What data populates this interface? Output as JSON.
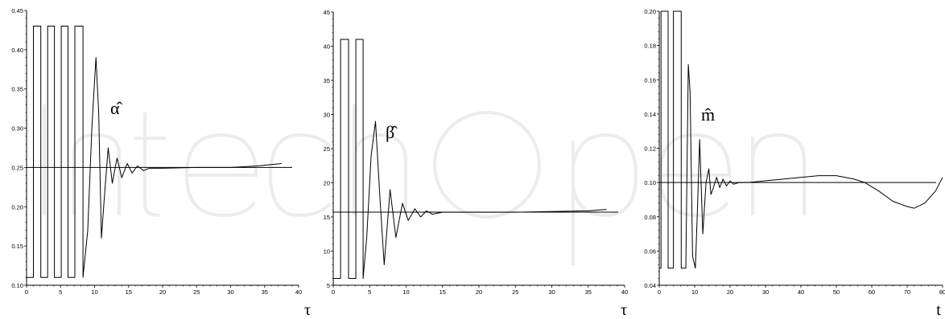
{
  "chart_data": [
    {
      "type": "line",
      "panel": "alpha",
      "xlabel": "τ",
      "annotation": "α̂",
      "xlim": [
        0,
        40
      ],
      "ylim": [
        0.1,
        0.45
      ],
      "xticks": [
        "0",
        "5",
        "10",
        "15",
        "20",
        "25",
        "30",
        "35",
        "40"
      ],
      "yticks": [
        "0.10",
        "0.15",
        "0.20",
        "0.25",
        "0.30",
        "0.35",
        "0.40",
        "0.45"
      ],
      "reference_value": 0.25,
      "series": [
        {
          "x": [
            0,
            1.0,
            1.0,
            2.1,
            2.1,
            3.1,
            3.1,
            4.1,
            4.1,
            5.1,
            5.1,
            6.1,
            6.1,
            7.1,
            7.1,
            8.3,
            8.3,
            9.0,
            9.6,
            10.2,
            10.6,
            11.0,
            11.5,
            12.0,
            12.6,
            13.3,
            14.0,
            14.8,
            15.5,
            16.3,
            17.2,
            18.0,
            20,
            25,
            30,
            34,
            37.5
          ],
          "y": [
            0.11,
            0.11,
            0.43,
            0.43,
            0.11,
            0.11,
            0.43,
            0.43,
            0.11,
            0.11,
            0.43,
            0.43,
            0.11,
            0.11,
            0.43,
            0.43,
            0.11,
            0.17,
            0.3,
            0.39,
            0.32,
            0.16,
            0.22,
            0.275,
            0.23,
            0.262,
            0.237,
            0.255,
            0.243,
            0.252,
            0.246,
            0.249,
            0.249,
            0.25,
            0.25,
            0.252,
            0.255
          ]
        }
      ]
    },
    {
      "type": "line",
      "panel": "beta",
      "xlabel": "τ",
      "annotation": "β̂",
      "xlim": [
        0,
        40
      ],
      "ylim": [
        5,
        45
      ],
      "xticks": [
        "0",
        "5",
        "10",
        "15",
        "20",
        "25",
        "30",
        "35",
        "40"
      ],
      "yticks": [
        "5",
        "10",
        "15",
        "20",
        "25",
        "30",
        "35",
        "40",
        "45"
      ],
      "reference_value": 15.7,
      "series": [
        {
          "x": [
            0,
            1.0,
            1.0,
            2.1,
            2.1,
            3.1,
            3.1,
            4.1,
            4.1,
            4.6,
            5.2,
            5.8,
            6.4,
            7.0,
            7.8,
            8.6,
            9.5,
            10.3,
            11.2,
            12.0,
            12.8,
            13.6,
            15,
            20,
            25,
            30,
            35,
            37.5
          ],
          "y": [
            6,
            6,
            41,
            41,
            6,
            6,
            41,
            41,
            6,
            12,
            24,
            29,
            18,
            8,
            19,
            12,
            17,
            14.5,
            16.2,
            15.0,
            15.9,
            15.4,
            15.7,
            15.7,
            15.7,
            15.8,
            15.9,
            16.1
          ]
        }
      ]
    },
    {
      "type": "line",
      "panel": "m",
      "xlabel": "t",
      "annotation": "m̂",
      "xlim": [
        0,
        80
      ],
      "ylim": [
        0.04,
        0.2
      ],
      "xticks": [
        "0",
        "10",
        "20",
        "30",
        "40",
        "50",
        "60",
        "70",
        "80"
      ],
      "yticks": [
        "0.04",
        "0.06",
        "0.08",
        "0.10",
        "0.12",
        "0.14",
        "0.16",
        "0.18",
        "0.20"
      ],
      "reference_value": 0.1,
      "series": [
        {
          "x": [
            0,
            0.5,
            0.5,
            2.5,
            2.5,
            4.0,
            4.0,
            6.2,
            6.2,
            7.5,
            8.2,
            8.7,
            9.4,
            10.2,
            10.8,
            11.4,
            12.3,
            13.2,
            14.0,
            14.6,
            15.3,
            16.2,
            17.1,
            18.0,
            19.0,
            20.0,
            21.0,
            22.5,
            24,
            25,
            30,
            35,
            40,
            45,
            50,
            55,
            58,
            62,
            66,
            70,
            72,
            75,
            78,
            80
          ],
          "y": [
            0.05,
            0.05,
            0.2,
            0.2,
            0.05,
            0.05,
            0.2,
            0.2,
            0.05,
            0.05,
            0.169,
            0.153,
            0.057,
            0.05,
            0.085,
            0.125,
            0.07,
            0.1,
            0.108,
            0.093,
            0.097,
            0.103,
            0.097,
            0.102,
            0.098,
            0.101,
            0.099,
            0.1,
            0.1,
            0.1,
            0.101,
            0.102,
            0.103,
            0.104,
            0.104,
            0.102,
            0.1,
            0.095,
            0.089,
            0.086,
            0.085,
            0.088,
            0.095,
            0.103
          ]
        }
      ]
    }
  ]
}
